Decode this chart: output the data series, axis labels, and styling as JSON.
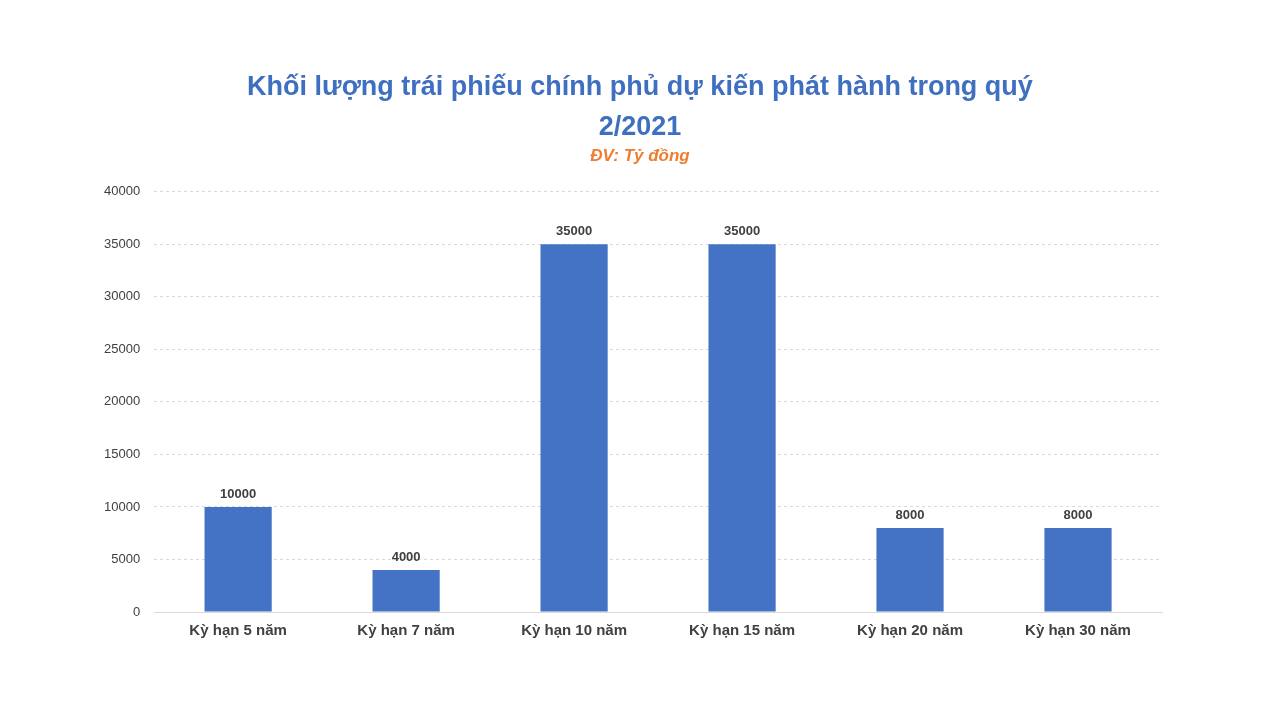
{
  "chart_data": {
    "type": "bar",
    "title": "Khối lượng trái phiếu chính phủ dự kiến phát hành trong quý 2/2021",
    "subtitle": "ĐV: Tỷ đồng",
    "categories": [
      "Kỳ hạn 5 năm",
      "Kỳ hạn 7 năm",
      "Kỳ hạn 10 năm",
      "Kỳ hạn 15 năm",
      "Kỳ hạn 20 năm",
      "Kỳ hạn 30 năm"
    ],
    "values": [
      10000,
      4000,
      35000,
      35000,
      8000,
      8000
    ],
    "color": "#4472c4",
    "ylim": [
      0,
      40000
    ],
    "yticks": [
      0,
      5000,
      10000,
      15000,
      20000,
      25000,
      30000,
      35000,
      40000
    ],
    "grid": "y",
    "data_labels": true
  }
}
